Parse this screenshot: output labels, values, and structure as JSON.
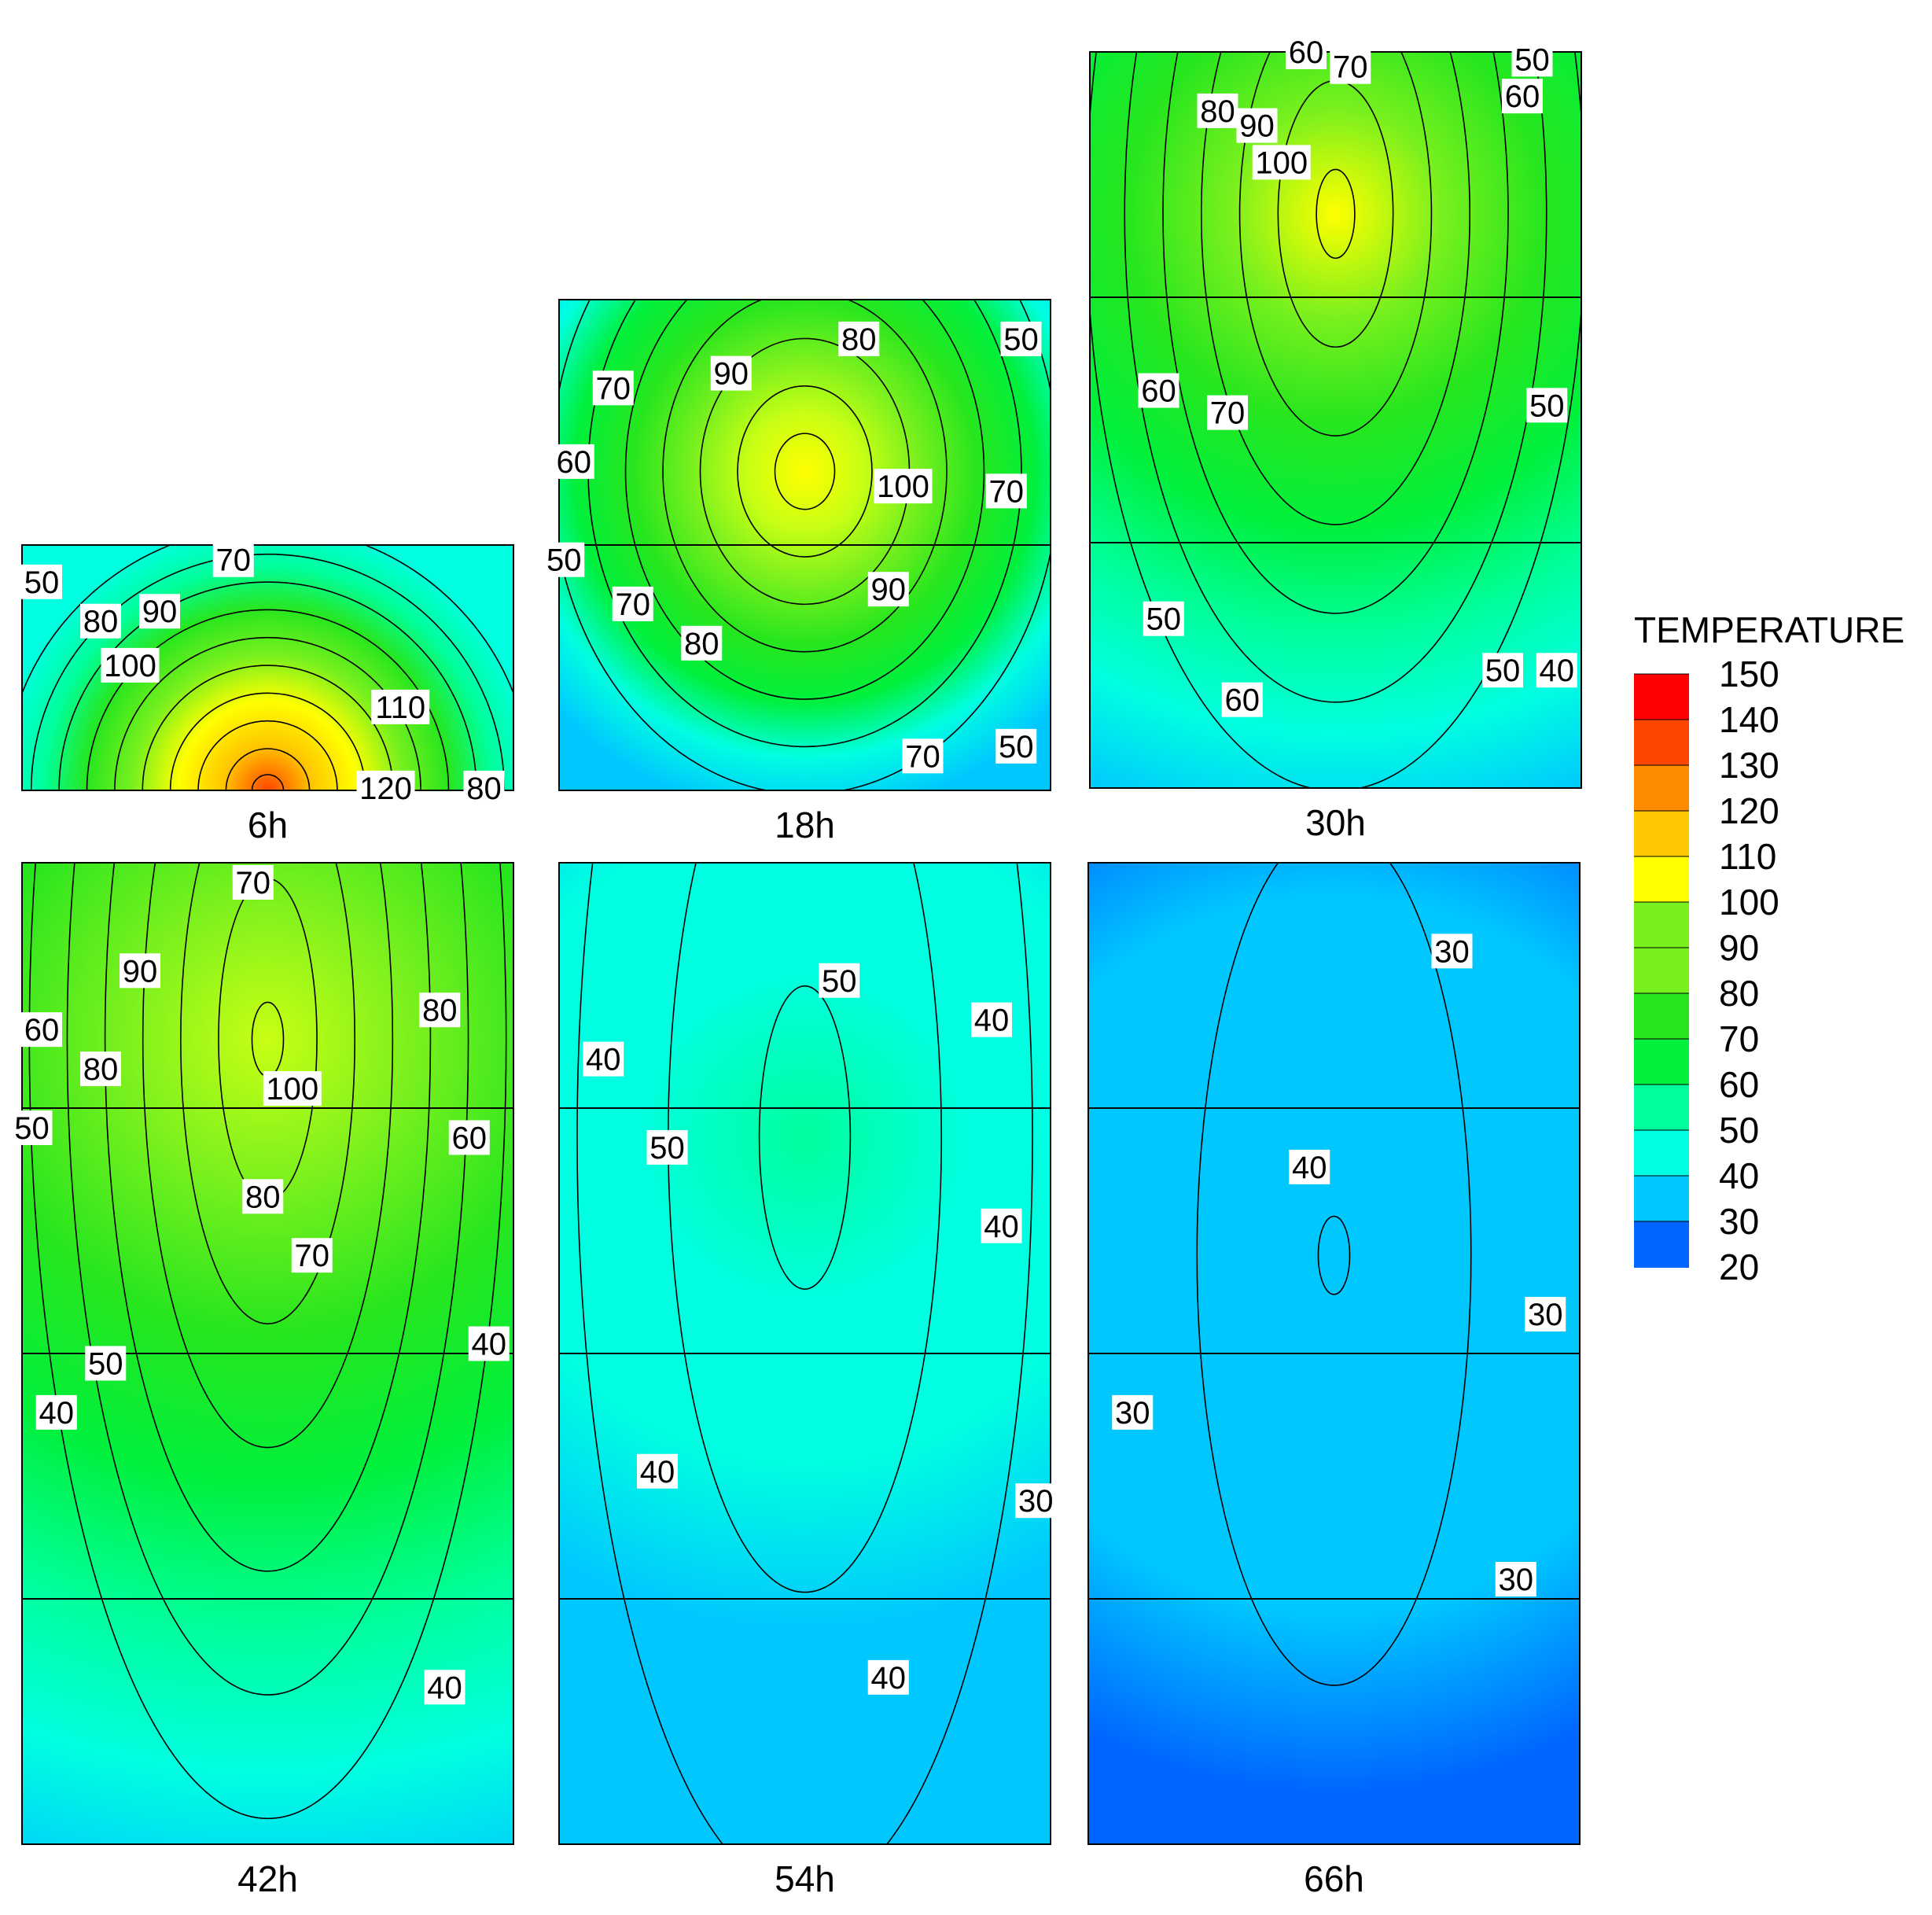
{
  "chart_data": {
    "type": "heatmap",
    "legend": {
      "title": "TEMPERATURE",
      "ticks": [
        "150",
        "140",
        "130",
        "120",
        "110",
        "100",
        "90",
        "80",
        "70",
        "60",
        "50",
        "40",
        "30",
        "20"
      ],
      "min": 20,
      "max": 150,
      "colors": [
        "#0000ff",
        "#0064ff",
        "#00c8ff",
        "#00ffe0",
        "#00ff9c",
        "#00f03c",
        "#28e61e",
        "#78f01e",
        "#c8ff14",
        "#ffff00",
        "#ffc800",
        "#ff8c00",
        "#ff4600",
        "#ff0000"
      ],
      "placement": "right"
    },
    "panels": [
      {
        "title": "6h",
        "segments": 1,
        "peak_temp": 135,
        "edge_temp": 45,
        "labels": [
          {
            "t": "70",
            "x": 0.43,
            "y": 0.06
          },
          {
            "t": "50",
            "x": 0.04,
            "y": 0.15
          },
          {
            "t": "80",
            "x": 0.16,
            "y": 0.31
          },
          {
            "t": "90",
            "x": 0.28,
            "y": 0.27
          },
          {
            "t": "100",
            "x": 0.22,
            "y": 0.49
          },
          {
            "t": "110",
            "x": 0.77,
            "y": 0.66
          },
          {
            "t": "120",
            "x": 0.74,
            "y": 0.99
          },
          {
            "t": "80",
            "x": 0.94,
            "y": 0.99
          }
        ]
      },
      {
        "title": "18h",
        "segments": 2,
        "peak_temp": 108,
        "edge_temp": 44,
        "labels": [
          {
            "t": "80",
            "x": 0.61,
            "y": 0.08
          },
          {
            "t": "50",
            "x": 0.94,
            "y": 0.08
          },
          {
            "t": "70",
            "x": 0.11,
            "y": 0.18
          },
          {
            "t": "90",
            "x": 0.35,
            "y": 0.15
          },
          {
            "t": "60",
            "x": 0.03,
            "y": 0.33
          },
          {
            "t": "100",
            "x": 0.7,
            "y": 0.38
          },
          {
            "t": "70",
            "x": 0.91,
            "y": 0.39
          },
          {
            "t": "50",
            "x": 0.01,
            "y": 0.53
          },
          {
            "t": "70",
            "x": 0.15,
            "y": 0.62
          },
          {
            "t": "90",
            "x": 0.67,
            "y": 0.59
          },
          {
            "t": "80",
            "x": 0.29,
            "y": 0.7
          },
          {
            "t": "70",
            "x": 0.74,
            "y": 0.93
          },
          {
            "t": "50",
            "x": 0.93,
            "y": 0.91
          }
        ]
      },
      {
        "title": "30h",
        "segments": 3,
        "peak_temp": 105,
        "edge_temp": 43,
        "labels": [
          {
            "t": "60",
            "x": 0.44,
            "y": 0.0
          },
          {
            "t": "70",
            "x": 0.53,
            "y": 0.02
          },
          {
            "t": "50",
            "x": 0.9,
            "y": 0.01
          },
          {
            "t": "60",
            "x": 0.88,
            "y": 0.06
          },
          {
            "t": "80",
            "x": 0.26,
            "y": 0.08
          },
          {
            "t": "90",
            "x": 0.34,
            "y": 0.1
          },
          {
            "t": "100",
            "x": 0.39,
            "y": 0.15
          },
          {
            "t": "60",
            "x": 0.14,
            "y": 0.46
          },
          {
            "t": "70",
            "x": 0.28,
            "y": 0.49
          },
          {
            "t": "50",
            "x": 0.93,
            "y": 0.48
          },
          {
            "t": "50",
            "x": 0.15,
            "y": 0.77
          },
          {
            "t": "60",
            "x": 0.31,
            "y": 0.88
          },
          {
            "t": "50",
            "x": 0.84,
            "y": 0.84
          },
          {
            "t": "40",
            "x": 0.95,
            "y": 0.84
          }
        ]
      },
      {
        "title": "42h",
        "segments": 4,
        "peak_temp": 103,
        "edge_temp": 40,
        "labels": [
          {
            "t": "70",
            "x": 0.47,
            "y": 0.02
          },
          {
            "t": "90",
            "x": 0.24,
            "y": 0.11
          },
          {
            "t": "80",
            "x": 0.85,
            "y": 0.15
          },
          {
            "t": "60",
            "x": 0.04,
            "y": 0.17
          },
          {
            "t": "80",
            "x": 0.16,
            "y": 0.21
          },
          {
            "t": "100",
            "x": 0.55,
            "y": 0.23
          },
          {
            "t": "50",
            "x": 0.02,
            "y": 0.27
          },
          {
            "t": "60",
            "x": 0.91,
            "y": 0.28
          },
          {
            "t": "80",
            "x": 0.49,
            "y": 0.34
          },
          {
            "t": "70",
            "x": 0.59,
            "y": 0.4
          },
          {
            "t": "50",
            "x": 0.17,
            "y": 0.51
          },
          {
            "t": "40",
            "x": 0.95,
            "y": 0.49
          },
          {
            "t": "40",
            "x": 0.07,
            "y": 0.56
          },
          {
            "t": "40",
            "x": 0.86,
            "y": 0.84
          }
        ]
      },
      {
        "title": "54h",
        "segments": 4,
        "peak_temp": 55,
        "edge_temp": 33,
        "labels": [
          {
            "t": "50",
            "x": 0.57,
            "y": 0.12
          },
          {
            "t": "40",
            "x": 0.88,
            "y": 0.16
          },
          {
            "t": "40",
            "x": 0.09,
            "y": 0.2
          },
          {
            "t": "50",
            "x": 0.22,
            "y": 0.29
          },
          {
            "t": "40",
            "x": 0.9,
            "y": 0.37
          },
          {
            "t": "40",
            "x": 0.2,
            "y": 0.62
          },
          {
            "t": "30",
            "x": 0.97,
            "y": 0.65
          },
          {
            "t": "40",
            "x": 0.67,
            "y": 0.83
          }
        ]
      },
      {
        "title": "66h",
        "segments": 4,
        "peak_temp": 41,
        "edge_temp": 24,
        "labels": [
          {
            "t": "30",
            "x": 0.74,
            "y": 0.09
          },
          {
            "t": "40",
            "x": 0.45,
            "y": 0.31
          },
          {
            "t": "30",
            "x": 0.93,
            "y": 0.46
          },
          {
            "t": "30",
            "x": 0.09,
            "y": 0.56
          },
          {
            "t": "30",
            "x": 0.87,
            "y": 0.73
          }
        ]
      }
    ]
  }
}
